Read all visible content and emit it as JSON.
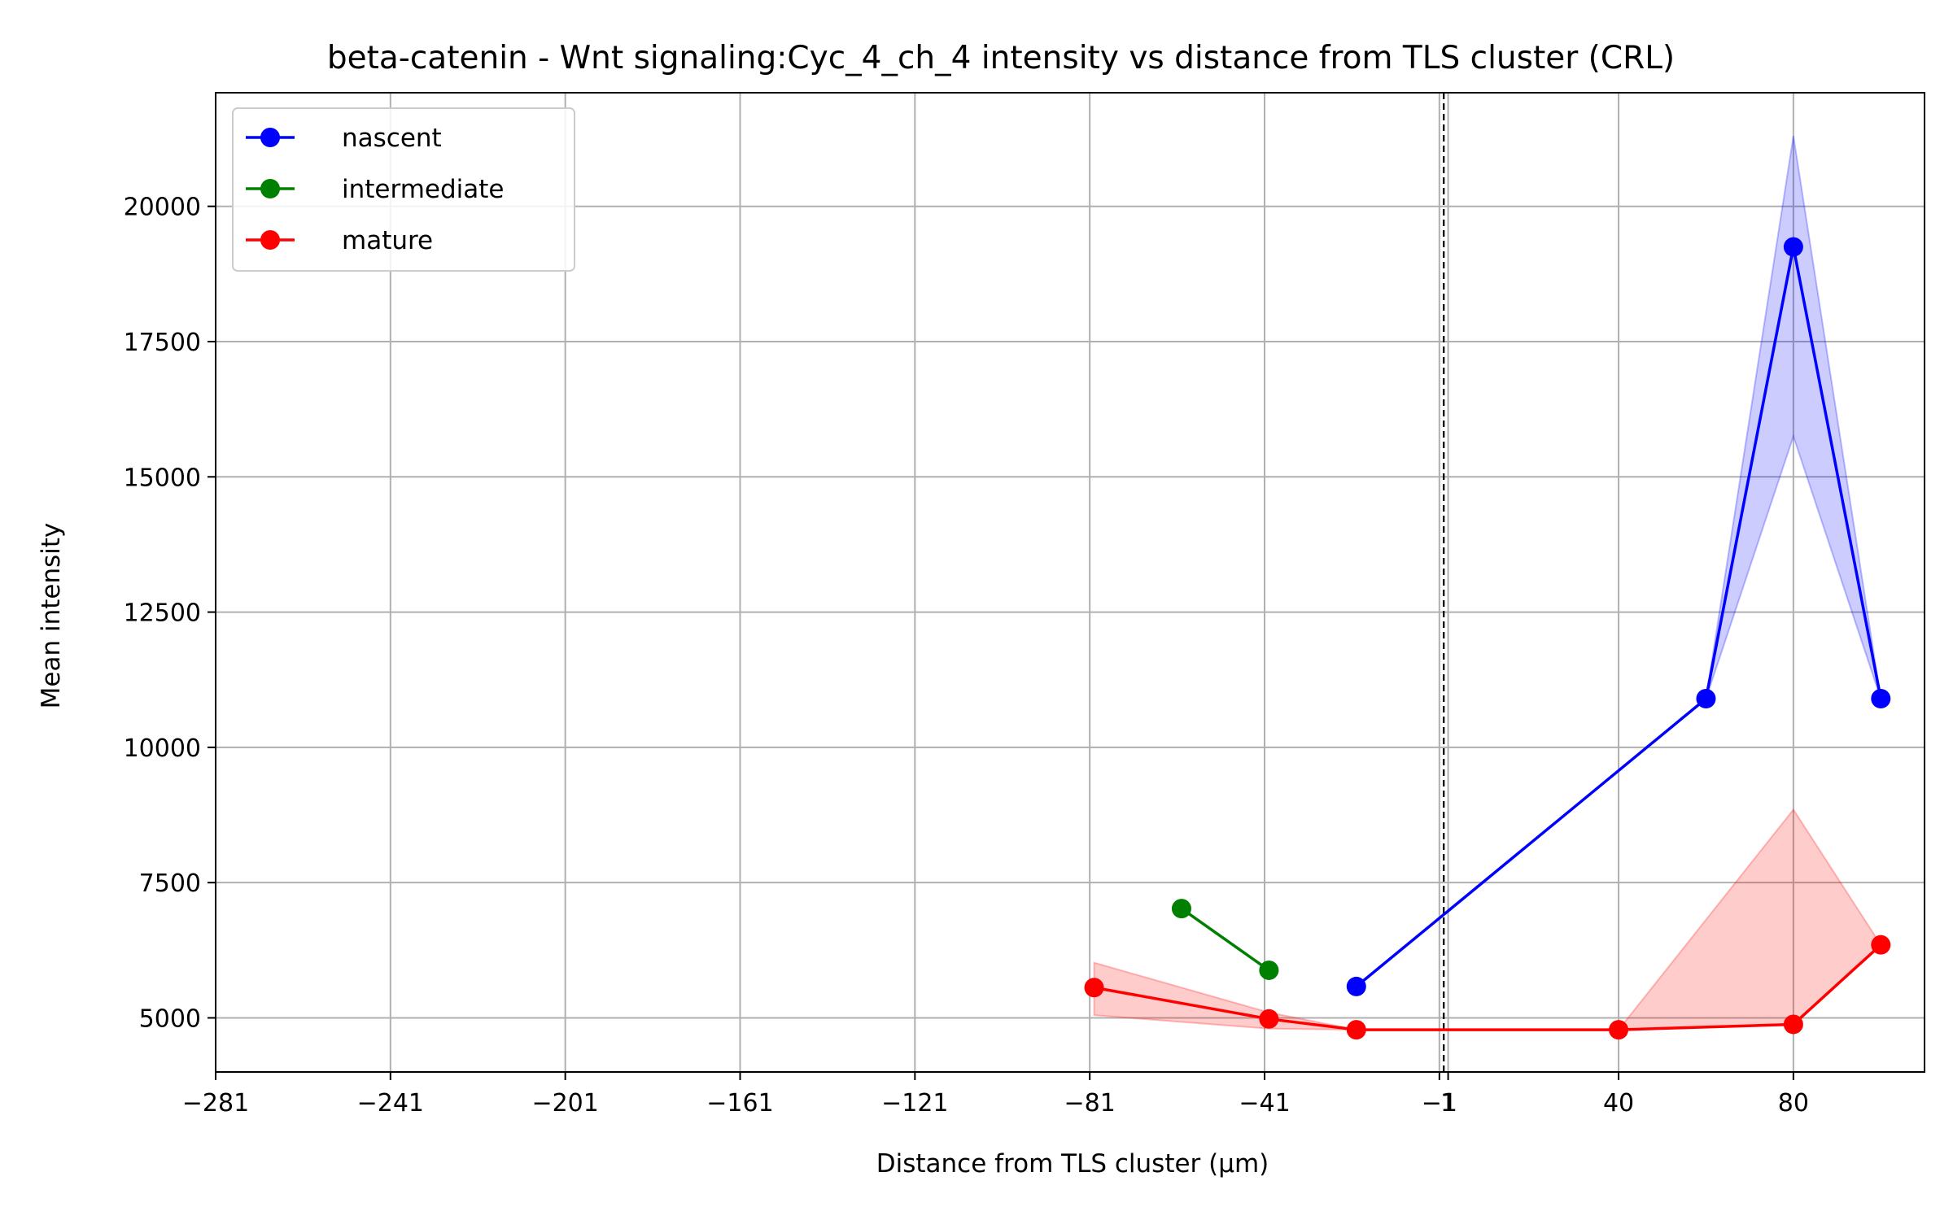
{
  "chart_data": {
    "type": "line",
    "title": "beta-catenin - Wnt signaling:Cyc_4_ch_4 intensity vs distance from TLS cluster (CRL)",
    "xlabel": "Distance from TLS cluster (μm)",
    "ylabel": "Mean intensity",
    "xlim": [
      -281,
      110
    ],
    "ylim": [
      4000,
      22100
    ],
    "x_ticks": [
      -281,
      -241,
      -201,
      -161,
      -121,
      -81,
      -41,
      -1,
      1,
      40,
      80
    ],
    "x_tick_labels": [
      "−281",
      "−241",
      "−201",
      "−161",
      "−121",
      "−81",
      "−41",
      "−1",
      "1",
      "40",
      "80"
    ],
    "y_ticks": [
      5000,
      7500,
      10000,
      12500,
      15000,
      17500,
      20000
    ],
    "y_tick_labels": [
      "5000",
      "7500",
      "10000",
      "12500",
      "15000",
      "17500",
      "20000"
    ],
    "grid": true,
    "legend_position": "top-left",
    "vline": {
      "x": 0,
      "style": "dashed",
      "color": "#000000"
    },
    "series": [
      {
        "name": "nascent",
        "color": "#0000ff",
        "x": [
          -20,
          60,
          80,
          100
        ],
        "y": [
          5580,
          10900,
          19250,
          10900
        ],
        "band_low": [
          5580,
          10900,
          15750,
          10900
        ],
        "band_high": [
          5580,
          10900,
          21300,
          10900
        ]
      },
      {
        "name": "intermediate",
        "color": "#008000",
        "x": [
          -60,
          -40
        ],
        "y": [
          7020,
          5880
        ]
      },
      {
        "name": "mature",
        "color": "#ff0000",
        "x": [
          -80,
          -40,
          -20,
          40,
          80,
          100
        ],
        "y": [
          5560,
          4980,
          4780,
          4780,
          4880,
          6350
        ],
        "band_low": [
          5050,
          4800,
          4780,
          4780,
          4880,
          6350
        ],
        "band_high": [
          6020,
          5100,
          4780,
          4780,
          8850,
          6350
        ]
      }
    ]
  }
}
